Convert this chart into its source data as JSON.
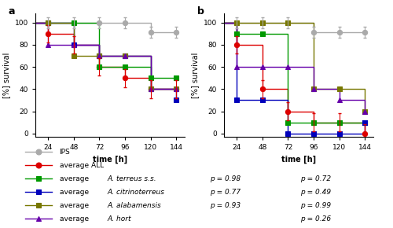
{
  "time": [
    0,
    24,
    48,
    72,
    96,
    120,
    144
  ],
  "panel_a": {
    "IPS": [
      100,
      100,
      100,
      100,
      100,
      91,
      91
    ],
    "avg_ALL": [
      100,
      90,
      80,
      60,
      50,
      40,
      40
    ],
    "avg_terreus": [
      100,
      100,
      100,
      60,
      60,
      50,
      50
    ],
    "avg_citrino": [
      100,
      100,
      80,
      70,
      70,
      40,
      30
    ],
    "avg_alaba": [
      100,
      100,
      70,
      70,
      70,
      40,
      40
    ],
    "avg_hort": [
      100,
      80,
      80,
      70,
      70,
      40,
      40
    ]
  },
  "panel_b": {
    "IPS": [
      100,
      100,
      100,
      100,
      91,
      91,
      91
    ],
    "avg_ALL": [
      100,
      80,
      40,
      20,
      10,
      10,
      0
    ],
    "avg_terreus": [
      100,
      90,
      90,
      10,
      10,
      10,
      10
    ],
    "avg_citrino": [
      100,
      30,
      30,
      0,
      0,
      0,
      10
    ],
    "avg_alaba": [
      100,
      100,
      100,
      100,
      40,
      40,
      20
    ],
    "avg_hort": [
      100,
      60,
      60,
      60,
      40,
      30,
      20
    ]
  },
  "colors": {
    "IPS": "#aaaaaa",
    "avg_ALL": "#dd0000",
    "avg_terreus": "#009900",
    "avg_citrino": "#0000bb",
    "avg_alaba": "#777700",
    "avg_hort": "#6600aa"
  },
  "markers": {
    "IPS": "o",
    "avg_ALL": "o",
    "avg_terreus": "s",
    "avg_citrino": "s",
    "avg_alaba": "s",
    "avg_hort": "^"
  },
  "labels_plain": {
    "IPS": "IPS",
    "avg_ALL": "average ALL"
  },
  "labels_prefix": {
    "avg_terreus": "average ",
    "avg_citrino": "average ",
    "avg_alaba": "average ",
    "avg_hort": "average "
  },
  "labels_italic": {
    "avg_terreus": "A. terreus s.s.",
    "avg_citrino": "A. citrinoterreus",
    "avg_alaba": "A. alabamensis",
    "avg_hort": "A. hort"
  },
  "p_values_a": {
    "avg_terreus": "p = 0.98",
    "avg_citrino": "p = 0.77",
    "avg_alaba": "p = 0.93",
    "avg_hort": ""
  },
  "p_values_b": {
    "avg_terreus": "p = 0.72",
    "avg_citrino": "p = 0.49",
    "avg_alaba": "p = 0.99",
    "avg_hort": "p = 0.26"
  },
  "err_ALL_a": [
    8,
    8,
    8,
    8,
    8,
    8
  ],
  "err_IPS_a": [
    5,
    5,
    5,
    5,
    5,
    5
  ],
  "err_ALL_b": [
    8,
    8,
    8,
    8,
    8,
    8
  ],
  "err_IPS_b": [
    5,
    5,
    5,
    5,
    5,
    5
  ],
  "xlim": [
    12,
    152
  ],
  "ylim": [
    -3,
    108
  ],
  "xticks": [
    24,
    48,
    72,
    96,
    120,
    144
  ],
  "yticks": [
    0,
    20,
    40,
    60,
    80,
    100
  ],
  "xlabel": "time [h]",
  "ylabel": "[%] survival"
}
